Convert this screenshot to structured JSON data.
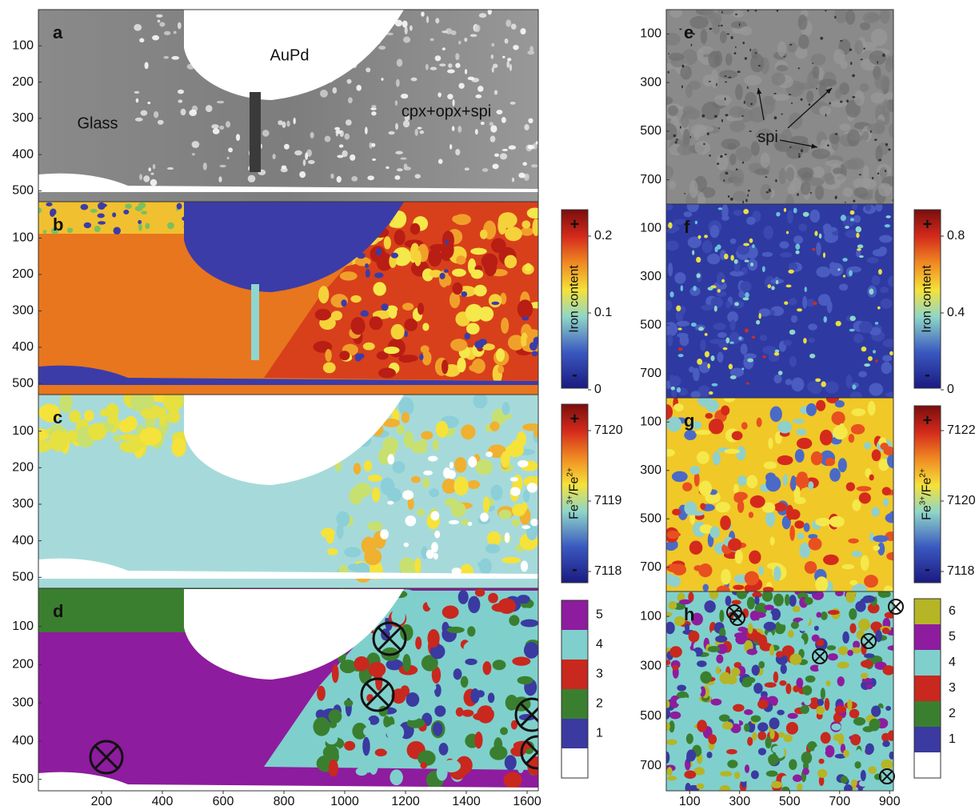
{
  "figure": {
    "panels": [
      {
        "label": "a",
        "yticks": [
          100,
          200,
          300,
          400,
          500
        ],
        "annotations": [
          "AuPd",
          "Glass",
          "cpx+opx+spi"
        ]
      },
      {
        "label": "b",
        "yticks": [
          100,
          200,
          300,
          400,
          500
        ]
      },
      {
        "label": "c",
        "yticks": [
          100,
          200,
          300,
          400,
          500
        ]
      },
      {
        "label": "d",
        "yticks": [
          100,
          200,
          300,
          400,
          500
        ]
      },
      {
        "label": "e",
        "yticks": [
          100,
          300,
          500,
          700
        ],
        "annotations": [
          "spi"
        ]
      },
      {
        "label": "f",
        "yticks": [
          100,
          300,
          500,
          700
        ]
      },
      {
        "label": "g",
        "yticks": [
          100,
          300,
          500,
          700
        ]
      },
      {
        "label": "h",
        "yticks": [
          100,
          300,
          500,
          700
        ]
      }
    ],
    "xticks_left": [
      200,
      400,
      600,
      800,
      1000,
      1200,
      1400,
      1600
    ],
    "xticks_right": [
      100,
      300,
      500,
      700,
      900
    ],
    "colorbars": [
      {
        "label": "Iron content",
        "max_sign": "+",
        "min_sign": "-",
        "ticks": [
          0.2,
          0.1,
          0
        ]
      },
      {
        "label_parts": [
          "Fe",
          "3+",
          "/Fe",
          "2+"
        ],
        "max_sign": "+",
        "min_sign": "-",
        "ticks": [
          7120,
          7119,
          7118
        ]
      },
      {
        "levels": [
          5,
          4,
          3,
          2,
          1
        ]
      },
      {
        "label": "Iron content",
        "max_sign": "+",
        "min_sign": "-",
        "ticks": [
          0.8,
          0.4,
          0
        ]
      },
      {
        "label_parts": [
          "Fe",
          "3+",
          "/Fe",
          "2+"
        ],
        "max_sign": "+",
        "min_sign": "-",
        "ticks": [
          7122,
          7120,
          7118
        ]
      },
      {
        "levels": [
          6,
          5,
          4,
          3,
          2,
          1
        ]
      }
    ]
  }
}
